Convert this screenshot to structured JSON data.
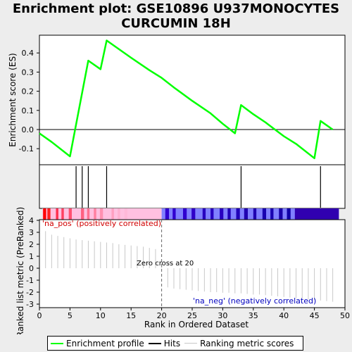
{
  "title_lines": [
    "Enrichment plot: GSE10896 U937MONOCYTES",
    "CURCUMIN 18H"
  ],
  "colors": {
    "enrichment": "#00ff00",
    "hits": "#000000",
    "ranking": "#c8c8c8",
    "pos_label": "#d00000",
    "neg_label": "#0000c0"
  },
  "chart_data": {
    "type": "line",
    "es_panel": {
      "ylabel": "Enrichment score (ES)",
      "ylim": [
        -0.16,
        0.5
      ],
      "yticks": [
        -0.1,
        0.0,
        0.1,
        0.2,
        0.3,
        0.4
      ],
      "series": [
        {
          "name": "Enrichment profile",
          "x": [
            0,
            2,
            5,
            8,
            10,
            11,
            15,
            18,
            20,
            22,
            25,
            28,
            30,
            32,
            33,
            35,
            37,
            40,
            42,
            45,
            46,
            48
          ],
          "y": [
            -0.02,
            -0.065,
            -0.14,
            0.36,
            0.315,
            0.465,
            0.375,
            0.31,
            0.27,
            0.22,
            0.15,
            0.085,
            0.03,
            -0.02,
            0.128,
            0.08,
            0.037,
            -0.035,
            -0.075,
            -0.15,
            0.045,
            0.0
          ]
        }
      ]
    },
    "hits": {
      "x": [
        6,
        7,
        8,
        11,
        33,
        46
      ]
    },
    "rank_panel": {
      "ylabel": "Ranked list metric (PreRanked)",
      "ylim": [
        -3.1,
        4.1
      ],
      "yticks": [
        -3,
        -2,
        -1,
        0,
        1,
        2,
        3,
        4
      ],
      "x": [
        1,
        2,
        3,
        4,
        5,
        6,
        7,
        8,
        9,
        10,
        11,
        12,
        13,
        14,
        15,
        16,
        17,
        18,
        19,
        20,
        21,
        22,
        23,
        24,
        25,
        26,
        27,
        28,
        29,
        30,
        31,
        32,
        33,
        34,
        35,
        36,
        37,
        38,
        39,
        40,
        41,
        42,
        43,
        44,
        45,
        46,
        47,
        48
      ],
      "values": [
        3.1,
        2.8,
        2.7,
        2.6,
        2.5,
        2.4,
        2.35,
        2.3,
        2.25,
        2.2,
        2.15,
        2.1,
        2.0,
        1.95,
        1.9,
        1.85,
        1.8,
        1.7,
        1.6,
        0.2,
        -1.6,
        -1.7,
        -1.75,
        -1.8,
        -1.85,
        -1.9,
        -1.95,
        -2.0,
        -2.0,
        -2.05,
        -2.05,
        -2.1,
        -2.1,
        -2.15,
        -2.2,
        -2.2,
        -2.25,
        -2.3,
        -2.35,
        -2.4,
        -2.45,
        -2.5,
        -2.55,
        -2.6,
        -2.65,
        -2.7,
        -2.75,
        -2.8
      ],
      "pos_label": "'na_pos' (positively correlated)",
      "neg_label": "'na_neg' (negatively correlated)",
      "zero_cross_label": "Zero cross at 20",
      "zero_cross": 20
    },
    "xlabel": "Rank in Ordered Dataset",
    "xlim": [
      0,
      50
    ],
    "xticks": [
      0,
      5,
      10,
      15,
      20,
      25,
      30,
      35,
      40,
      45,
      50
    ]
  },
  "legend": {
    "es": "Enrichment profile",
    "hits": "Hits",
    "rank": "Ranking metric scores"
  }
}
